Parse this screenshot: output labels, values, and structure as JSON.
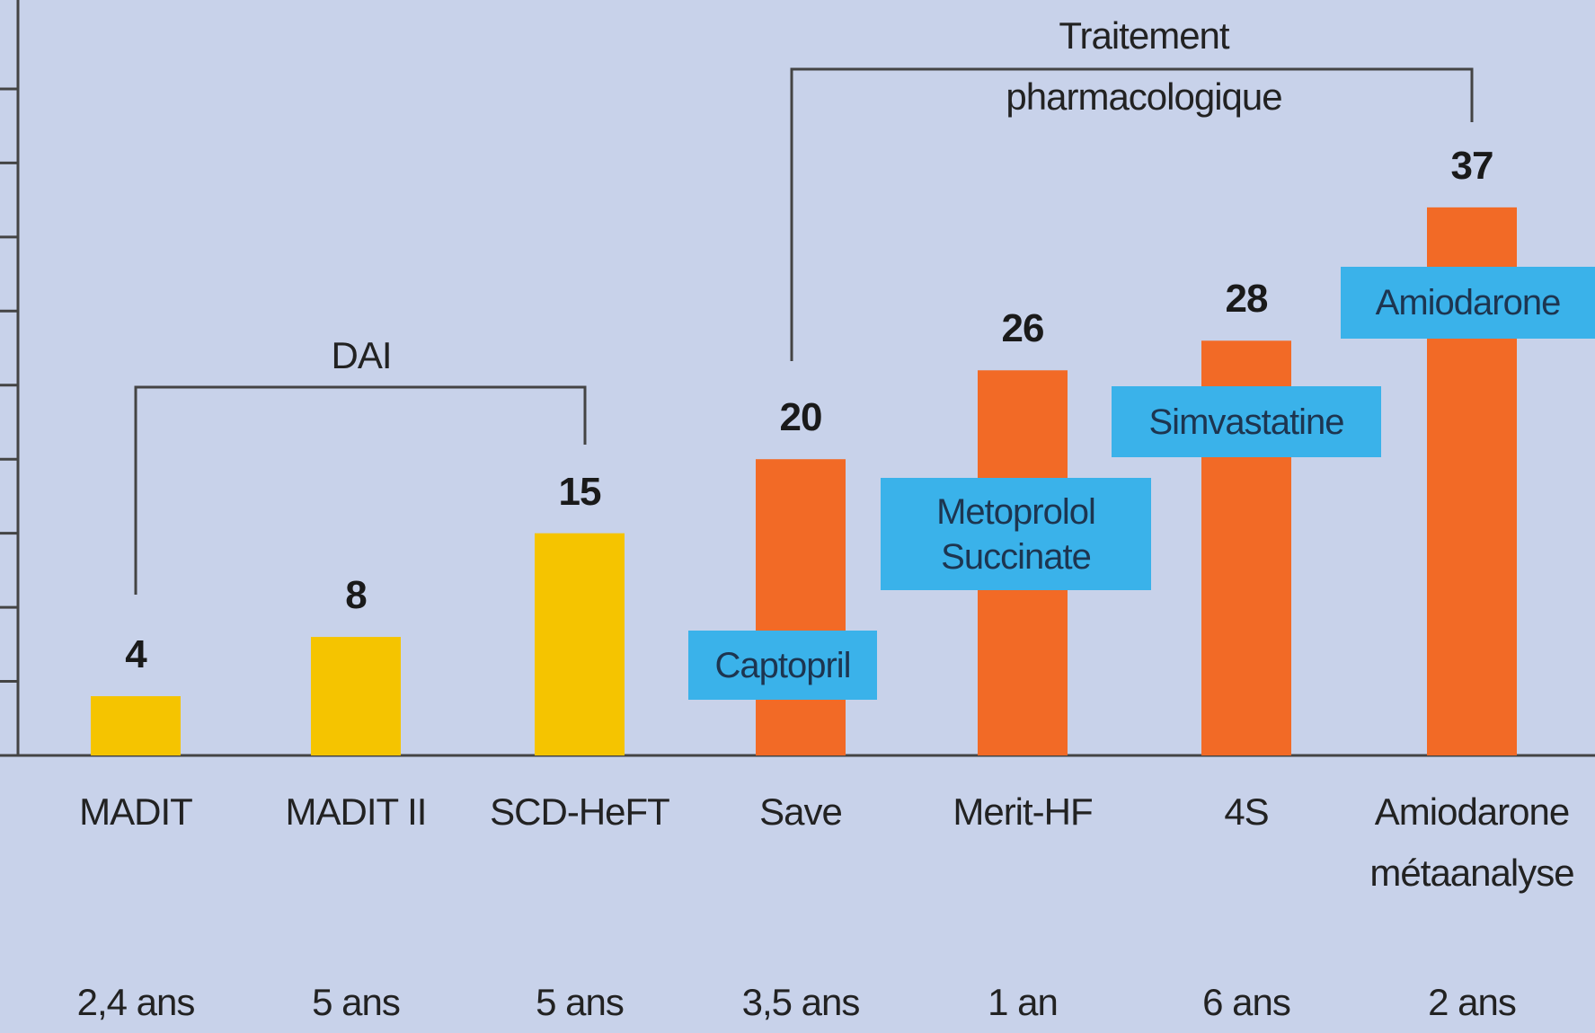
{
  "chart_data": {
    "type": "bar",
    "categories": [
      "MADIT",
      "MADIT II",
      "SCD-HeFT",
      "Save",
      "Merit-HF",
      "4S",
      "Amiodarone\nmétaanalyse"
    ],
    "values": [
      4,
      8,
      15,
      20,
      26,
      28,
      37
    ],
    "colors": [
      "#f5c400",
      "#f5c400",
      "#f5c400",
      "#f26a26",
      "#f26a26",
      "#f26a26",
      "#f26a26"
    ],
    "durations": [
      "2,4 ans",
      "5 ans",
      "5 ans",
      "3,5 ans",
      "1 an",
      "6 ans",
      "2 ans"
    ],
    "treatments": [
      null,
      null,
      null,
      "Captopril",
      "Metoprolol\nSuccinate",
      "Simvastatine",
      "Amiodarone"
    ],
    "groups": [
      "DAI",
      "Traitement pharmacologique"
    ],
    "ylim": [
      0,
      51
    ],
    "yticks": [
      0,
      5,
      10,
      15,
      20,
      25,
      30,
      35,
      40,
      45
    ]
  }
}
